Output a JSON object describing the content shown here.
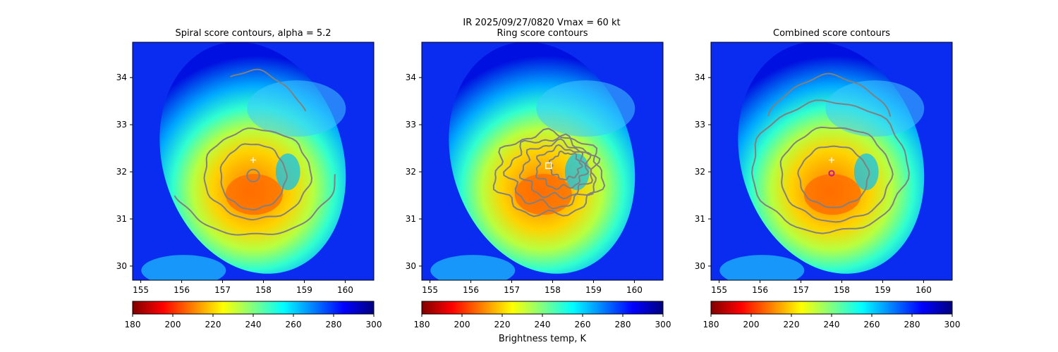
{
  "figure": {
    "suptitle_line1": "IR  2025/09/27/0820    Vmax = 60 kt",
    "colorbar_label": "Brightness temp, K"
  },
  "chart_data": [
    {
      "type": "heatmap",
      "title": "Spiral score contours, alpha =  5.2",
      "xlabel": "",
      "ylabel": "",
      "xlim": [
        154.8,
        160.7
      ],
      "ylim": [
        29.7,
        34.75
      ],
      "x_ticks": [
        155,
        156,
        157,
        158,
        159,
        160
      ],
      "y_ticks": [
        30,
        31,
        32,
        33,
        34
      ],
      "storm_center": {
        "lon": 157.6,
        "lat": 31.7
      },
      "eye_radius_deg": 0.35,
      "colorbar": {
        "min": 180,
        "max": 300,
        "ticks": [
          180,
          200,
          220,
          240,
          260,
          280,
          300
        ],
        "colormap": "jet_r"
      },
      "markers": [
        {
          "type": "cross",
          "lon": 157.75,
          "lat": 32.25,
          "color": "#ffffff"
        }
      ],
      "contours": [
        {
          "kind": "circle",
          "lon": 157.75,
          "lat": 31.92,
          "r": 0.15
        },
        {
          "kind": "closed",
          "lon": 157.75,
          "lat": 31.9,
          "rx": 0.8,
          "ry": 0.8
        },
        {
          "kind": "closed",
          "lon": 157.85,
          "lat": 31.95,
          "rx": 1.3,
          "ry": 1.1
        },
        {
          "kind": "arc",
          "lon": 157.75,
          "lat": 31.95,
          "rx": 2.0,
          "ry": 1.5,
          "from": 200,
          "to": 360
        },
        {
          "kind": "arc",
          "lon": 157.7,
          "lat": 32.4,
          "rx": 1.5,
          "ry": 2.0,
          "from": 30,
          "to": 110
        }
      ]
    },
    {
      "type": "heatmap",
      "title": "Ring score contours",
      "xlabel": "",
      "ylabel": "",
      "xlim": [
        154.8,
        160.7
      ],
      "ylim": [
        29.7,
        34.75
      ],
      "x_ticks": [
        155,
        156,
        157,
        158,
        159,
        160
      ],
      "y_ticks": [
        30,
        31,
        32,
        33,
        34
      ],
      "storm_center": {
        "lon": 157.6,
        "lat": 31.7
      },
      "eye_radius_deg": 0.35,
      "colorbar": {
        "min": 180,
        "max": 300,
        "ticks": [
          180,
          200,
          220,
          240,
          260,
          280,
          300
        ],
        "colormap": "jet_r"
      },
      "markers": [
        {
          "type": "square",
          "lon": 157.9,
          "lat": 32.13,
          "color": "#ffffff"
        }
      ],
      "contours": [
        {
          "kind": "noisy",
          "lon": 157.9,
          "lat": 31.95,
          "rx": 1.3,
          "ry": 1.0
        }
      ]
    },
    {
      "type": "heatmap",
      "title": "Combined score contours",
      "xlabel": "",
      "ylabel": "",
      "xlim": [
        154.8,
        160.7
      ],
      "ylim": [
        29.7,
        34.75
      ],
      "x_ticks": [
        155,
        156,
        157,
        158,
        159,
        160
      ],
      "y_ticks": [
        30,
        31,
        32,
        33,
        34
      ],
      "storm_center": {
        "lon": 157.6,
        "lat": 31.7
      },
      "eye_radius_deg": 0.35,
      "colorbar": {
        "min": 180,
        "max": 300,
        "ticks": [
          180,
          200,
          220,
          240,
          260,
          280,
          300
        ],
        "colormap": "jet_r"
      },
      "markers": [
        {
          "type": "cross",
          "lon": 157.75,
          "lat": 32.25,
          "color": "#ffffff"
        },
        {
          "type": "circle",
          "lon": 157.75,
          "lat": 31.97,
          "color": "#c0179a"
        }
      ],
      "contours": [
        {
          "kind": "closed",
          "lon": 157.8,
          "lat": 31.9,
          "rx": 0.85,
          "ry": 0.75
        },
        {
          "kind": "closed",
          "lon": 157.85,
          "lat": 31.95,
          "rx": 1.35,
          "ry": 1.15
        },
        {
          "kind": "closed",
          "lon": 157.7,
          "lat": 32.1,
          "rx": 1.9,
          "ry": 1.6
        },
        {
          "kind": "arc",
          "lon": 157.7,
          "lat": 32.3,
          "rx": 1.7,
          "ry": 2.0,
          "from": 30,
          "to": 150
        }
      ]
    }
  ]
}
